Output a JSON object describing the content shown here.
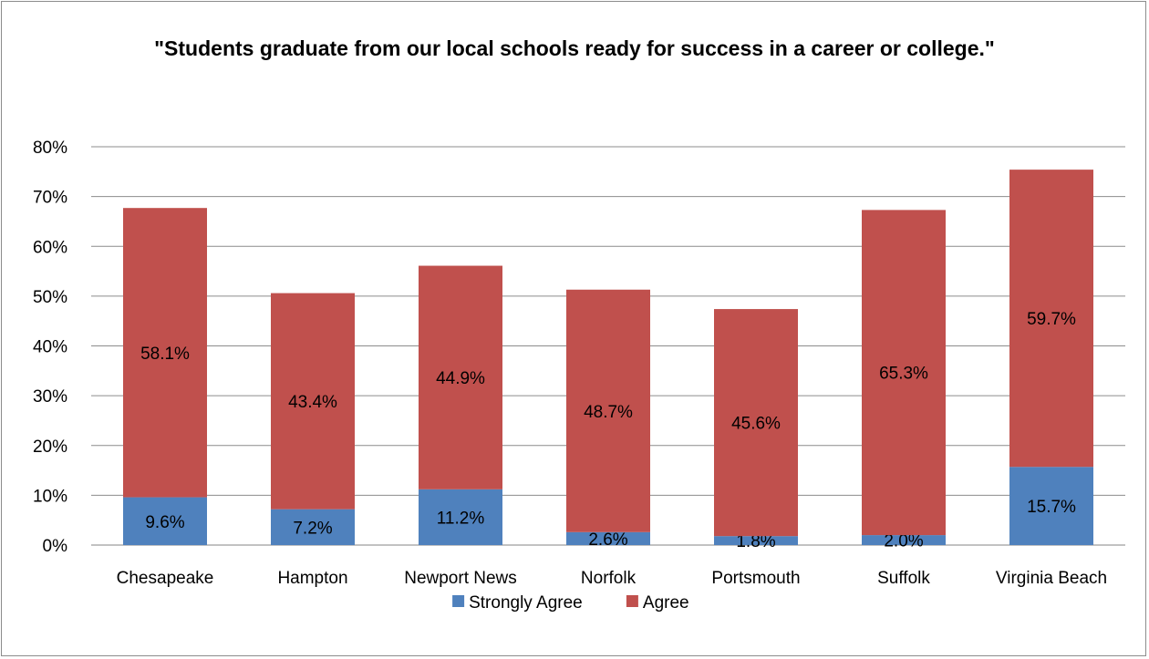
{
  "chart_data": {
    "type": "bar",
    "stacked": true,
    "title": "\"Students graduate from our local schools ready for success in a career or college.\"",
    "categories": [
      "Chesapeake",
      "Hampton",
      "Newport News",
      "Norfolk",
      "Portsmouth",
      "Suffolk",
      "Virginia Beach"
    ],
    "series": [
      {
        "name": "Strongly Agree",
        "color": "#4f81bd",
        "values": [
          9.6,
          7.2,
          11.2,
          2.6,
          1.8,
          2.0,
          15.7
        ],
        "labels": [
          "9.6%",
          "7.2%",
          "11.2%",
          "2.6%",
          "1.8%",
          "2.0%",
          "15.7%"
        ]
      },
      {
        "name": "Agree",
        "color": "#c0504d",
        "values": [
          58.1,
          43.4,
          44.9,
          48.7,
          45.6,
          65.3,
          59.7
        ],
        "labels": [
          "58.1%",
          "43.4%",
          "44.9%",
          "48.7%",
          "45.6%",
          "65.3%",
          "59.7%"
        ]
      }
    ],
    "y_ticks": [
      "0%",
      "10%",
      "20%",
      "30%",
      "40%",
      "50%",
      "60%",
      "70%",
      "80%"
    ],
    "ylim": [
      0,
      80
    ],
    "grid": true,
    "legend_position": "bottom"
  }
}
